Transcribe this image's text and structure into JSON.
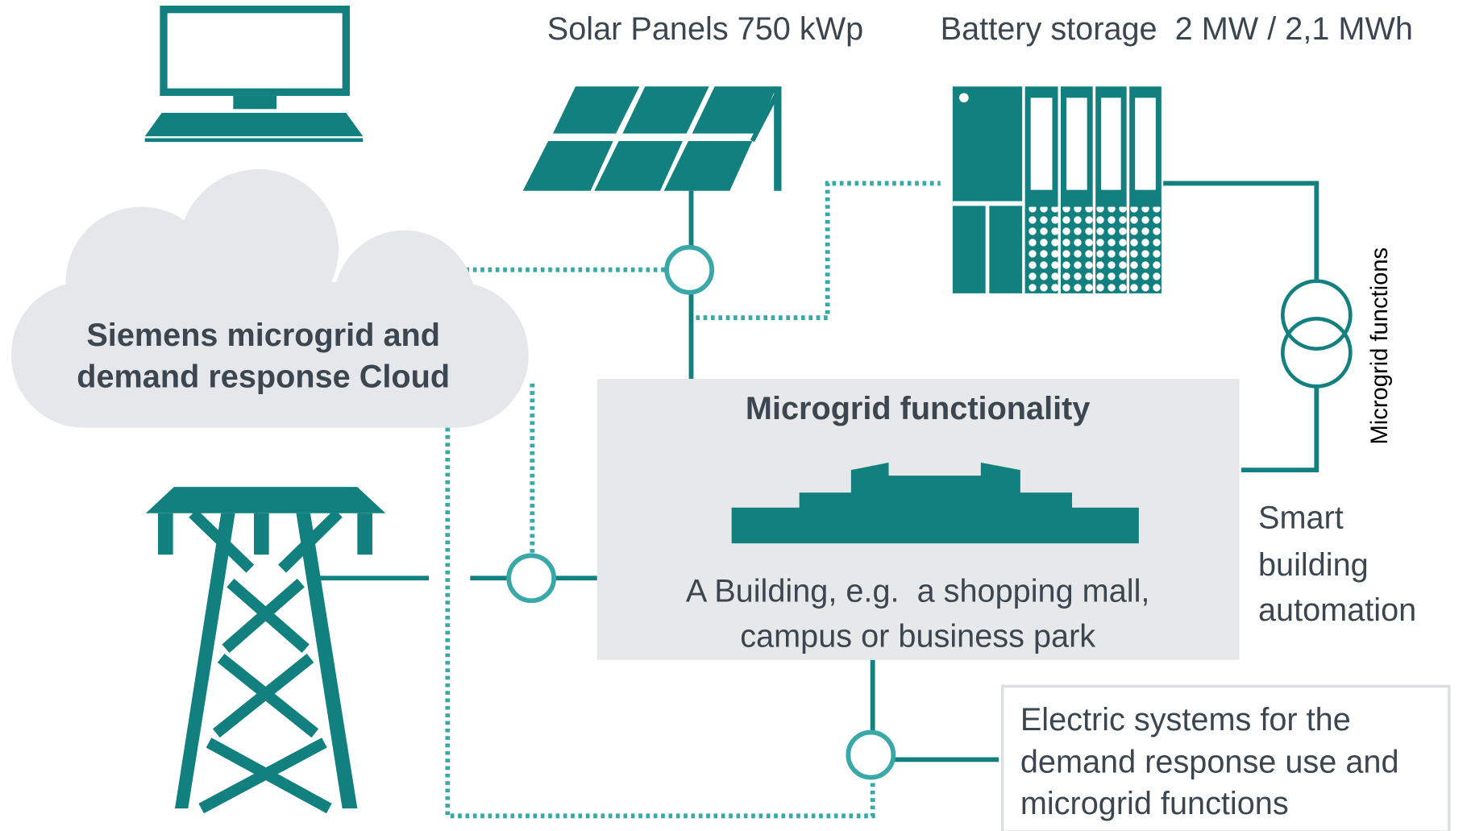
{
  "labels": {
    "solar": "Solar Panels 750 kWp",
    "battery": "Battery storage  2 MW / 2,1 MWh",
    "cloud": [
      "Siemens microgrid and",
      "demand response Cloud"
    ],
    "microgrid_title": "Microgrid functionality",
    "building": [
      "A Building, e.g.  a shopping mall,",
      "campus or business park"
    ],
    "vertical": "Microgrid functions",
    "smart": [
      "Smart",
      "building",
      "automation"
    ],
    "electric": [
      "Electric systems for the",
      "demand response use and",
      "microgrid functions"
    ]
  }
}
